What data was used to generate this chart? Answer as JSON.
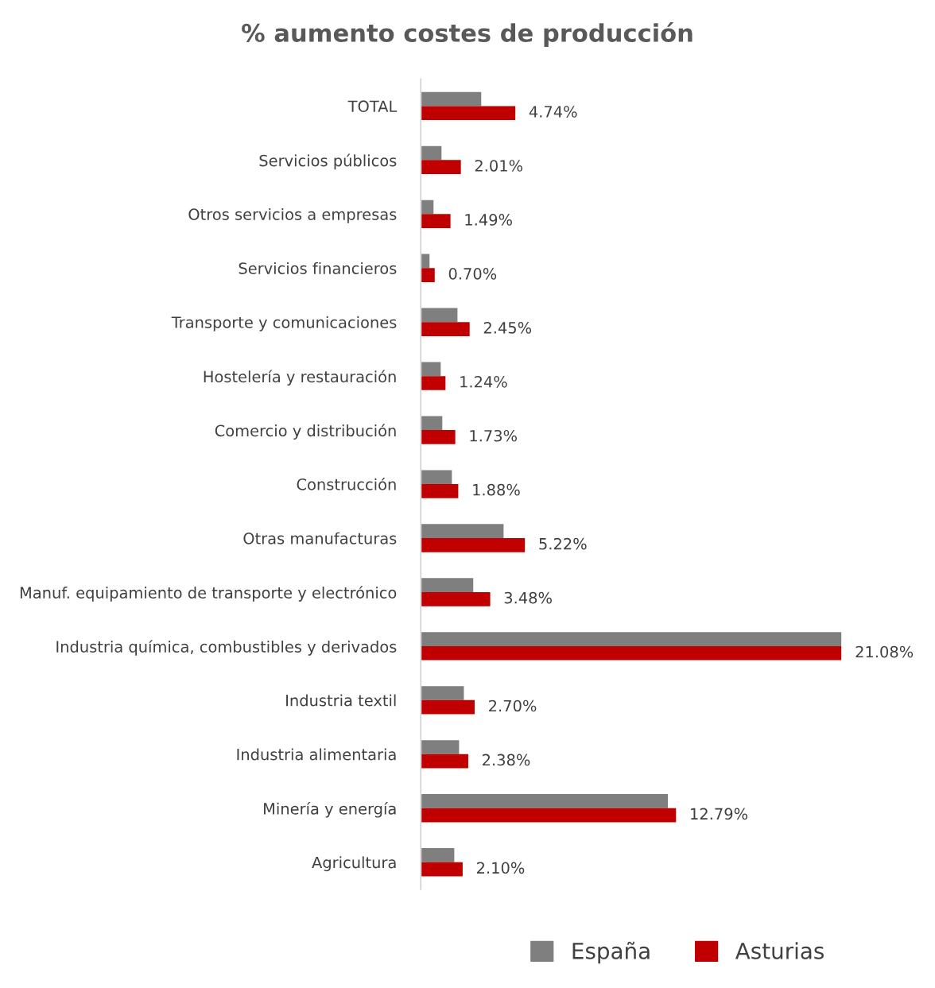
{
  "chart_data": {
    "type": "bar",
    "orientation": "horizontal",
    "title": "% aumento costes de producción",
    "categories": [
      "TOTAL",
      "Servicios públicos",
      "Otros servicios a empresas",
      "Servicios financieros",
      "Transporte y comunicaciones",
      "Hostelería y restauración",
      "Comercio y distribución",
      "Construcción",
      "Otras manufacturas",
      "Manuf. equipamiento de transporte y electrónico",
      "Industria química, combustibles y derivados",
      "Industria textil",
      "Industria alimentaria",
      "Minería y energía",
      "Agricultura"
    ],
    "series": [
      {
        "name": "España",
        "color": "#7f7f7f",
        "values": [
          3.03,
          1.04,
          0.64,
          0.44,
          1.84,
          1.0,
          1.08,
          1.56,
          4.15,
          2.63,
          21.08,
          2.16,
          1.92,
          12.38,
          1.68
        ]
      },
      {
        "name": "Asturias",
        "color": "#c00000",
        "values": [
          4.74,
          2.01,
          1.49,
          0.7,
          2.45,
          1.24,
          1.73,
          1.88,
          5.22,
          3.48,
          21.08,
          2.7,
          2.38,
          12.79,
          2.1
        ],
        "value_labels": [
          "4.74%",
          "2.01%",
          "1.49%",
          "0.70%",
          "2.45%",
          "1.24%",
          "1.73%",
          "1.88%",
          "5.22%",
          "3.48%",
          "21.08%",
          "2.70%",
          "2.38%",
          "12.79%",
          "2.10%"
        ]
      }
    ],
    "tick_labels": "y",
    "grid": false,
    "legend": "bottom"
  }
}
